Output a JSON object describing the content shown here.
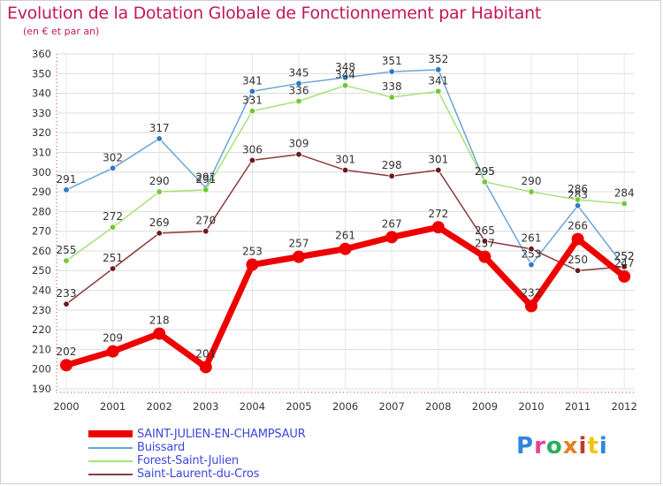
{
  "title": "Evolution de la Dotation Globale de Fonctionnement par Habitant",
  "subtitle": "(en € et par an)",
  "logo": {
    "text": "Proxiti",
    "colors": [
      "#2e86de",
      "#e84393",
      "#27ae60",
      "#e67e22",
      "#c0392b",
      "#f1c40f",
      "#2e86de"
    ]
  },
  "chart_data": {
    "type": "line",
    "x": [
      "2000",
      "2001",
      "2002",
      "2003",
      "2004",
      "2005",
      "2006",
      "2007",
      "2008",
      "2009",
      "2010",
      "2011",
      "2012"
    ],
    "ylim": [
      190,
      360
    ],
    "yticks": [
      "190",
      "200",
      "210",
      "220",
      "230",
      "240",
      "250",
      "260",
      "270",
      "280",
      "290",
      "300",
      "310",
      "320",
      "330",
      "340",
      "350",
      "360"
    ],
    "grid": true,
    "legend_position": "bottom",
    "series": [
      {
        "name": "Buissard",
        "color": "#6ba3d6",
        "point_color": "#2f78c4",
        "values": [
          291,
          302,
          317,
          292,
          341,
          345,
          348,
          351,
          352,
          295,
          253,
          283,
          252
        ],
        "labels": [
          "291",
          "302",
          "317",
          "292",
          "341",
          "345",
          "348",
          "351",
          "352",
          "295",
          "253",
          "283",
          "252"
        ]
      },
      {
        "name": "Forest-Saint-Julien",
        "color": "#a8e07a",
        "point_color": "#72c832",
        "values": [
          255,
          272,
          290,
          291,
          331,
          336,
          344,
          338,
          341,
          295,
          290,
          286,
          284
        ],
        "labels": [
          "255",
          "272",
          "290",
          "291",
          "331",
          "336",
          "344",
          "338",
          "341",
          "295",
          "290",
          "286",
          "284"
        ]
      },
      {
        "name": "Saint-Laurent-du-Cros",
        "color": "#8b3a3a",
        "point_color": "#6b1a1a",
        "values": [
          233,
          251,
          269,
          270,
          306,
          309,
          301,
          298,
          301,
          265,
          261,
          250,
          252
        ],
        "labels": [
          "233",
          "251",
          "269",
          "270",
          "306",
          "309",
          "301",
          "298",
          "301",
          "265",
          "261",
          "250",
          "252"
        ]
      },
      {
        "name": "SAINT-JULIEN-EN-CHAMPSAUR",
        "color": "#ee0000",
        "point_color": "#ee0000",
        "values": [
          202,
          209,
          218,
          201,
          253,
          257,
          261,
          267,
          272,
          257,
          232,
          266,
          247
        ],
        "labels": [
          "202",
          "209",
          "218",
          "201",
          "253",
          "257",
          "261",
          "267",
          "272",
          "257",
          "232",
          "266",
          "247"
        ]
      }
    ],
    "legend": [
      "SAINT-JULIEN-EN-CHAMPSAUR",
      "Buissard",
      "Forest-Saint-Julien",
      "Saint-Laurent-du-Cros"
    ]
  }
}
